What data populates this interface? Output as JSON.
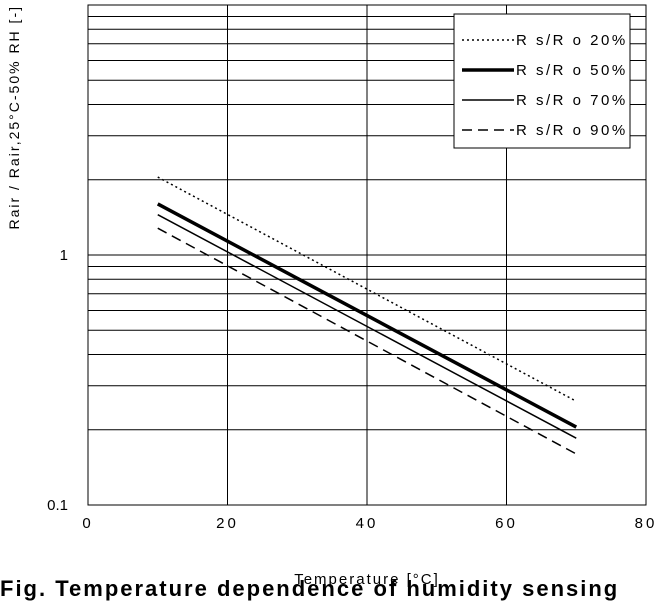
{
  "chart_data": {
    "type": "line",
    "title": "",
    "xlabel": "Temperature [°C]",
    "ylabel": "Rair / Rair,25°C-50% RH [-]",
    "xlim": [
      0,
      80
    ],
    "ylim": [
      0.1,
      10
    ],
    "yscale": "log",
    "grid": true,
    "legend_position": "top-right",
    "x_ticks": [
      "0",
      "20",
      "40",
      "60",
      "80"
    ],
    "y_ticks": [
      "0.1",
      "1"
    ],
    "series": [
      {
        "name": "R s/R o 20%",
        "style": "dotted",
        "x": [
          10,
          70
        ],
        "y": [
          2.05,
          0.26
        ]
      },
      {
        "name": "R s/R o 50%",
        "style": "thick",
        "x": [
          10,
          70
        ],
        "y": [
          1.6,
          0.205
        ]
      },
      {
        "name": "R s/R o 70%",
        "style": "thin",
        "x": [
          10,
          70
        ],
        "y": [
          1.45,
          0.185
        ]
      },
      {
        "name": "R s/R o 90%",
        "style": "dashed",
        "x": [
          10,
          70
        ],
        "y": [
          1.28,
          0.16
        ]
      }
    ]
  },
  "caption": "Fig. Temperature dependence of humidity sensing"
}
